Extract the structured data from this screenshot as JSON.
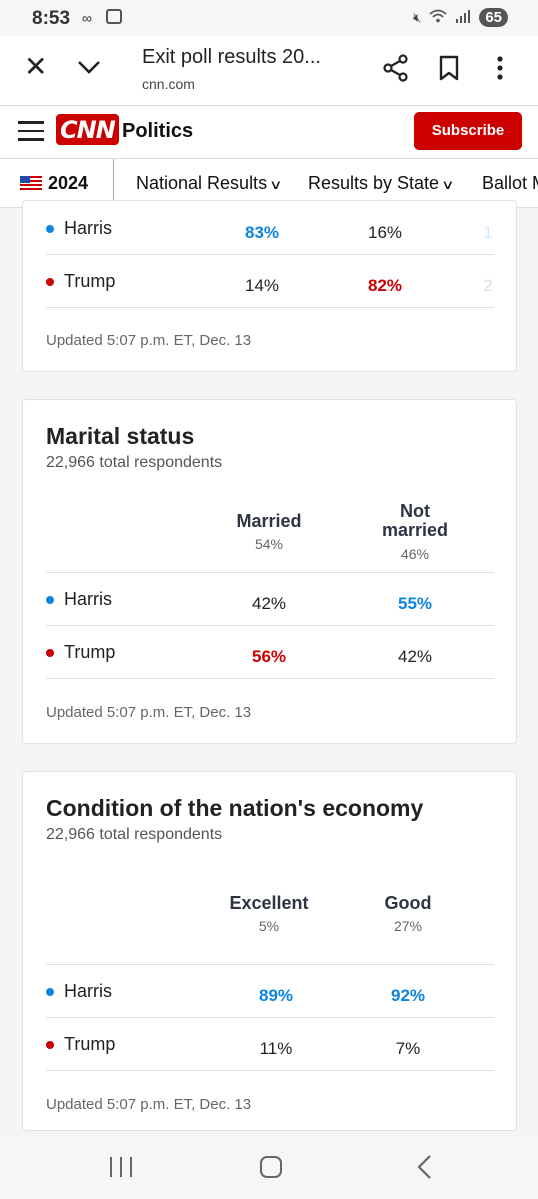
{
  "status_bar": {
    "time": "8:53",
    "battery": "65",
    "icons": [
      "voicemail-icon",
      "screen-record-icon",
      "mute-icon",
      "wifi-icon",
      "signal-icon"
    ]
  },
  "browser": {
    "title": "Exit poll results 20...",
    "url": "cnn.com",
    "icons": [
      "close-icon",
      "chevron-down-icon",
      "share-icon",
      "bookmark-icon",
      "more-vert-icon"
    ]
  },
  "header": {
    "logo": "CNN",
    "section": "Politics",
    "subscribe_label": "Subscribe",
    "brand_color": "#cc0000"
  },
  "nav": {
    "year": "2024",
    "items": [
      "National Results",
      "Results by State",
      "Ballot M"
    ]
  },
  "colors": {
    "harris": "#0c84e0",
    "trump": "#cc0000"
  },
  "cards": [
    {
      "title": "",
      "subtitle": "",
      "columns": [],
      "rows": [
        {
          "candidate": "Harris",
          "values": [
            "83%",
            "16%",
            "1"
          ]
        },
        {
          "candidate": "Trump",
          "values": [
            "14%",
            "82%",
            "2"
          ]
        }
      ],
      "updated": "Updated 5:07 p.m. ET, Dec. 13"
    },
    {
      "title": "Marital status",
      "subtitle": "22,966 total respondents",
      "columns": [
        {
          "label_line1": "Married",
          "label_line2": "",
          "pct": "54%"
        },
        {
          "label_line1": "Not",
          "label_line2": "married",
          "pct": "46%"
        }
      ],
      "rows": [
        {
          "candidate": "Harris",
          "values": [
            "42%",
            "55%"
          ]
        },
        {
          "candidate": "Trump",
          "values": [
            "56%",
            "42%"
          ]
        }
      ],
      "updated": "Updated 5:07 p.m. ET, Dec. 13"
    },
    {
      "title": "Condition of the nation's economy",
      "subtitle": "22,966 total respondents",
      "columns": [
        {
          "label_line1": "Excellent",
          "label_line2": "",
          "pct": "5%"
        },
        {
          "label_line1": "Good",
          "label_line2": "",
          "pct": "27%"
        }
      ],
      "rows": [
        {
          "candidate": "Harris",
          "values": [
            "89%",
            "92%"
          ]
        },
        {
          "candidate": "Trump",
          "values": [
            "11%",
            "7%"
          ]
        }
      ],
      "updated": "Updated 5:07 p.m. ET, Dec. 13"
    }
  ],
  "system_nav": {
    "icons": [
      "recent-apps-icon",
      "home-icon",
      "back-icon"
    ]
  }
}
